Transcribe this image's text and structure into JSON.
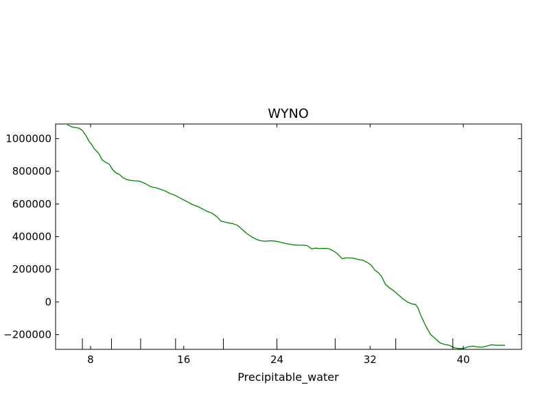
{
  "chart_data": {
    "type": "line",
    "title": "WYNO",
    "xlabel": "Precipitable_water",
    "ylabel": "",
    "xlim": [
      5,
      45
    ],
    "ylim": [
      -290000,
      1090000
    ],
    "xticks": [
      8,
      16,
      24,
      32,
      40
    ],
    "yticks": [
      1000000,
      800000,
      600000,
      400000,
      200000,
      0,
      -200000
    ],
    "xtick_labels": [
      "8",
      "16",
      "24",
      "32",
      "40"
    ],
    "ytick_labels": [
      "1000000",
      "800000",
      "600000",
      "400000",
      "200000",
      "0",
      "−200000"
    ],
    "rug_x": [
      7.3,
      9.8,
      12.3,
      15.3,
      19.4,
      24.0,
      29.0,
      34.2,
      39.1
    ],
    "grid": false,
    "series": [
      {
        "color": "#008000",
        "x": [
          6.0,
          6.5,
          7.0,
          7.3,
          7.6,
          7.9,
          8.1,
          8.3,
          8.5,
          8.7,
          9.0,
          9.3,
          9.6,
          9.9,
          10.2,
          10.5,
          10.8,
          11.1,
          11.4,
          11.8,
          12.2,
          12.7,
          13.2,
          13.6,
          14.0,
          14.4,
          14.8,
          15.2,
          15.6,
          16.0,
          16.4,
          16.8,
          17.2,
          17.6,
          18.0,
          18.4,
          18.8,
          19.2,
          19.5,
          19.8,
          20.2,
          20.6,
          21.0,
          21.4,
          21.8,
          22.2,
          22.6,
          23.0,
          23.4,
          23.8,
          24.2,
          24.6,
          25.0,
          25.4,
          25.8,
          26.2,
          26.6,
          27.0,
          27.3,
          27.6,
          28.0,
          28.4,
          28.8,
          29.2,
          29.6,
          29.9,
          30.2,
          30.6,
          31.0,
          31.4,
          31.8,
          32.1,
          32.4,
          32.7,
          33.0,
          33.3,
          33.6,
          34.0,
          34.4,
          34.8,
          35.2,
          35.6,
          35.9,
          36.1,
          36.4,
          36.8,
          37.2,
          37.6,
          38.0,
          38.4,
          38.8,
          39.2,
          39.6,
          40.0,
          40.4,
          40.8,
          41.2,
          41.6,
          42.0,
          42.4,
          42.8,
          43.2,
          43.6
        ],
        "y": [
          1085000,
          1070000,
          1065000,
          1050000,
          1020000,
          980000,
          965000,
          940000,
          925000,
          910000,
          870000,
          855000,
          845000,
          810000,
          790000,
          780000,
          760000,
          750000,
          745000,
          742000,
          740000,
          725000,
          705000,
          700000,
          690000,
          680000,
          665000,
          655000,
          640000,
          625000,
          610000,
          595000,
          585000,
          570000,
          555000,
          545000,
          525000,
          495000,
          490000,
          485000,
          480000,
          470000,
          445000,
          420000,
          400000,
          385000,
          375000,
          372000,
          375000,
          373000,
          368000,
          360000,
          355000,
          350000,
          348000,
          348000,
          345000,
          325000,
          330000,
          327000,
          328000,
          328000,
          315000,
          295000,
          265000,
          270000,
          270000,
          268000,
          260000,
          255000,
          240000,
          225000,
          195000,
          180000,
          155000,
          110000,
          90000,
          70000,
          45000,
          20000,
          0,
          -12000,
          -15000,
          -35000,
          -90000,
          -150000,
          -200000,
          -225000,
          -250000,
          -260000,
          -265000,
          -280000,
          -285000,
          -285000,
          -275000,
          -270000,
          -275000,
          -277000,
          -270000,
          -262000,
          -265000,
          -265000,
          -265000
        ]
      }
    ]
  }
}
